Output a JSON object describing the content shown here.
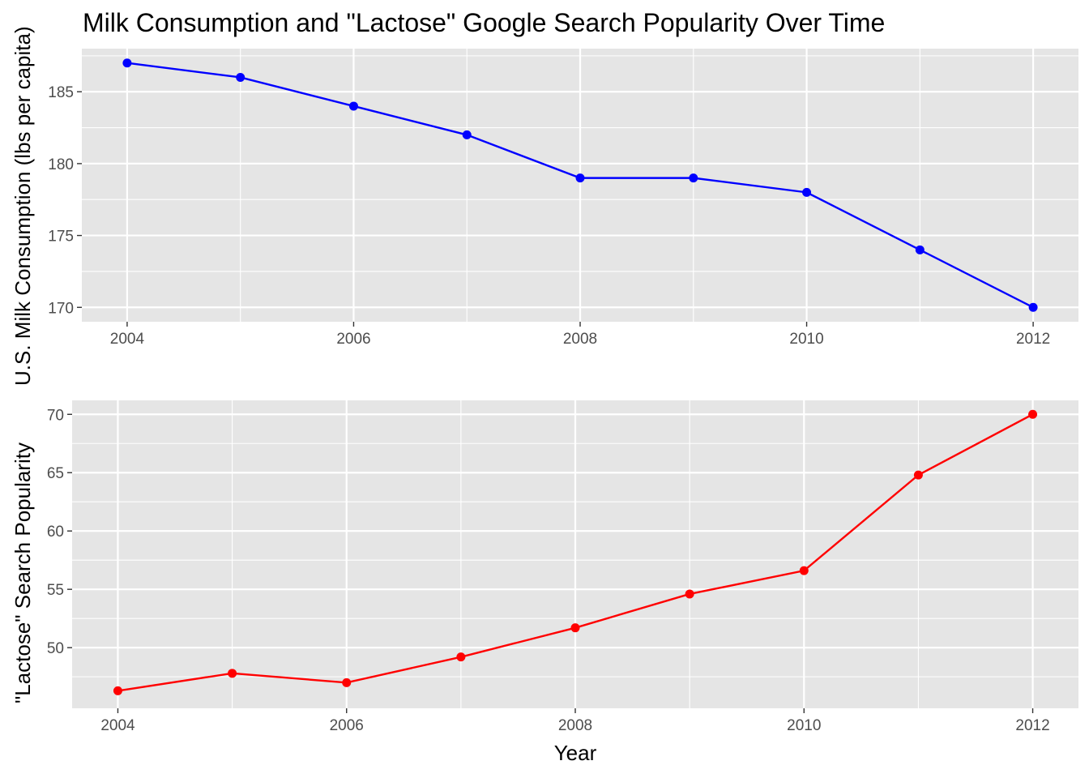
{
  "title": "Milk Consumption and \"Lactose\" Google Search Popularity Over Time",
  "xlabel": "Year",
  "colors": {
    "panel_bg": "#e5e5e5",
    "grid": "#ffffff",
    "tick_text": "#4d4d4d",
    "tick_mark": "#333333"
  },
  "chart_data": [
    {
      "type": "line",
      "ylabel": "U.S. Milk Consumption (lbs per capita)",
      "x": [
        2004,
        2005,
        2006,
        2007,
        2008,
        2009,
        2010,
        2011,
        2012
      ],
      "series": [
        {
          "values": [
            187,
            186,
            184,
            182,
            179,
            179,
            178,
            174,
            170
          ],
          "color": "#0000ff"
        }
      ],
      "xlim": [
        2003.6,
        2012.4
      ],
      "ylim": [
        169,
        188
      ],
      "x_ticks": [
        2004,
        2006,
        2008,
        2010,
        2012
      ],
      "y_ticks": [
        170,
        175,
        180,
        185
      ],
      "grid": true
    },
    {
      "type": "line",
      "ylabel": "\"Lactose\" Search Popularity",
      "x": [
        2004,
        2005,
        2006,
        2007,
        2008,
        2009,
        2010,
        2011,
        2012
      ],
      "series": [
        {
          "values": [
            46.3,
            47.8,
            47.0,
            49.2,
            51.7,
            54.6,
            56.6,
            64.8,
            70.0
          ],
          "color": "#ff0000"
        }
      ],
      "xlim": [
        2003.6,
        2012.4
      ],
      "ylim": [
        44.8,
        71.2
      ],
      "x_ticks": [
        2004,
        2006,
        2008,
        2010,
        2012
      ],
      "y_ticks": [
        50,
        55,
        60,
        65,
        70
      ],
      "grid": true
    }
  ]
}
